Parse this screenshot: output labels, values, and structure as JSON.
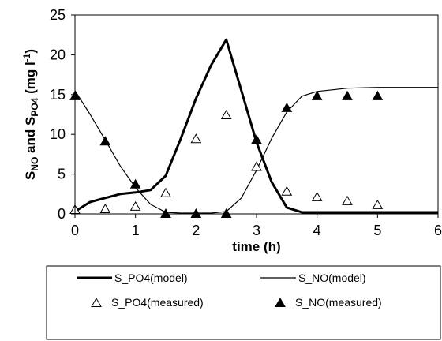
{
  "chart_data": {
    "type": "line",
    "title": "",
    "xlabel": "time (h)",
    "ylabel": {
      "parts": [
        "S",
        "NO",
        " and  ",
        "S",
        "PO4",
        " (mg l",
        "-1",
        ")"
      ]
    },
    "xlim": [
      0,
      6
    ],
    "ylim": [
      0,
      25
    ],
    "x_ticks": [
      "0",
      "1",
      "2",
      "3",
      "4",
      "5",
      "6"
    ],
    "y_ticks": [
      "0",
      "5",
      "10",
      "15",
      "20",
      "25"
    ],
    "grid": false,
    "legend_position": "bottom",
    "series": [
      {
        "name": "S_PO4(model)",
        "kind": "line",
        "style": "thick",
        "color": "#000000",
        "x": [
          0,
          0.25,
          0.5,
          0.75,
          1.0,
          1.25,
          1.5,
          1.75,
          2.0,
          2.25,
          2.5,
          2.75,
          3.0,
          3.25,
          3.5,
          3.75,
          4.0,
          4.5,
          5.0,
          5.5,
          6.0
        ],
        "y": [
          0.3,
          1.5,
          2.0,
          2.5,
          2.7,
          3.0,
          4.8,
          9.5,
          14.5,
          18.7,
          21.9,
          15.5,
          9.0,
          4.0,
          0.8,
          0.2,
          0.2,
          0.2,
          0.2,
          0.2,
          0.2
        ]
      },
      {
        "name": "S_NO(model)",
        "kind": "line",
        "style": "thin",
        "color": "#000000",
        "x": [
          0,
          0.25,
          0.5,
          0.75,
          1.0,
          1.25,
          1.5,
          1.75,
          2.0,
          2.25,
          2.5,
          2.75,
          3.0,
          3.25,
          3.5,
          3.75,
          4.0,
          4.25,
          4.5,
          5.0,
          5.5,
          6.0
        ],
        "y": [
          15.5,
          12.5,
          9.3,
          6.0,
          3.3,
          1.2,
          0.2,
          0.1,
          0.1,
          0.1,
          0.3,
          2.0,
          5.5,
          9.5,
          12.8,
          14.8,
          15.4,
          15.6,
          15.8,
          15.9,
          15.9,
          15.9
        ]
      },
      {
        "name": "S_PO4(measured)",
        "kind": "marker",
        "marker": "open-triangle",
        "color": "#000000",
        "x": [
          0,
          0.5,
          1.0,
          1.5,
          2.0,
          2.5,
          3.0,
          3.5,
          4.0,
          4.5,
          5.0
        ],
        "y": [
          0.5,
          0.6,
          0.9,
          2.6,
          9.4,
          12.4,
          5.9,
          2.8,
          2.1,
          1.6,
          1.1
        ]
      },
      {
        "name": "S_NO(measured)",
        "kind": "marker",
        "marker": "filled-triangle",
        "color": "#000000",
        "x": [
          0,
          0.5,
          1.0,
          1.5,
          2.0,
          2.5,
          3.0,
          3.5,
          4.0,
          4.5,
          5.0
        ],
        "y": [
          14.8,
          9.1,
          3.7,
          0.0,
          0.0,
          0.0,
          9.3,
          13.3,
          14.8,
          14.8,
          14.8
        ]
      }
    ]
  }
}
